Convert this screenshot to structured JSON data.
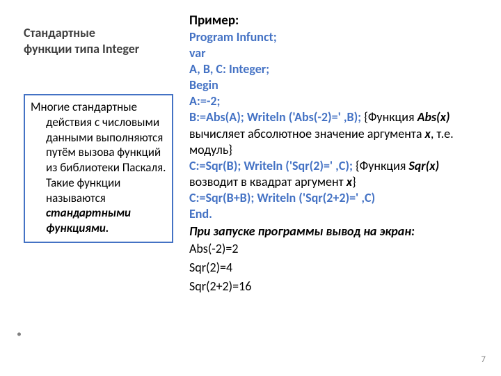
{
  "colors": {
    "keyword": "#4472c4",
    "title": "#3f3f3f",
    "body": "#000000",
    "border": "#4472c4",
    "pagenum": "#8a8a8a",
    "background": "#ffffff"
  },
  "typography": {
    "family": "Calibri, Arial, sans-serif",
    "title_pt": 18,
    "body_pt": 17,
    "code_pt": 18
  },
  "left": {
    "title_line1": "Стандартные",
    "title_line2": "функции типа Integer",
    "box_text_lead": "Многие стандартные",
    "box_text_rest": "действия с числовыми данными выполняются путём вызова функций из библиотеки Паскаля. Такие функции называются ",
    "box_text_emph": "стандартными функциями."
  },
  "right": {
    "header": "Пример:",
    "l1": "Program Infunct;",
    "l2": "var",
    "l3": "A, B, C: Integer;",
    "l4": "Begin",
    "l5": "A:=-2;",
    "l6a": "B:=Abs(A); Writeln ('Abs(-2)=' ,B);",
    "l6b_pre": " {Функция ",
    "l6b_abs": "Abs(x)",
    "l6b_mid": " вычисляет абсолютное значение аргумента ",
    "l6b_x": "x",
    "l6b_post": ", т.е. модуль}",
    "l7a": "C:=Sqr(B); Writeln ('Sqr(2)=' ,C);",
    "l7b_pre": " {Функция ",
    "l7b_sqr": "Sqr(x)",
    "l7b_mid": " возводит в квадрат аргумент ",
    "l7b_x": "x",
    "l7b_post": "}",
    "l8": "C:=Sqr(B+B); Writeln ('Sqr(2+2)=' ,C)",
    "l9": "End.",
    "out_title": "При запуске программы вывод на экран:",
    "out1": "Abs(-2)=2",
    "out2": "Sqr(2)=4",
    "out3": "Sqr(2+2)=16"
  },
  "page_number": "7"
}
